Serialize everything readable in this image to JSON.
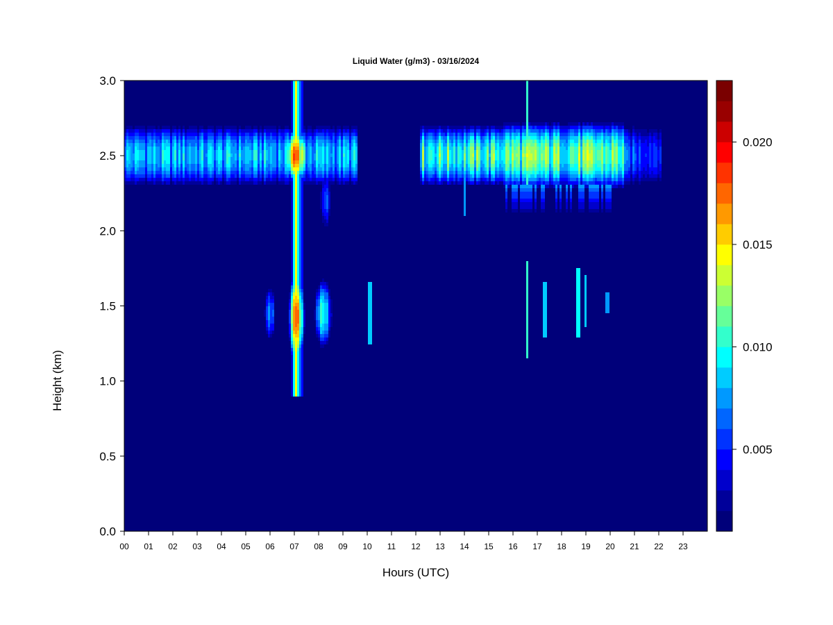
{
  "chart_data": {
    "type": "heatmap",
    "title": "Liquid Water (g/m3) - 03/16/2024",
    "xlabel": "Hours (UTC)",
    "ylabel": "Height (km)",
    "xlim": [
      0,
      24
    ],
    "ylim": [
      0,
      3.0
    ],
    "x_tick_values": [
      0,
      1,
      2,
      3,
      4,
      5,
      6,
      7,
      8,
      9,
      10,
      11,
      12,
      13,
      14,
      15,
      16,
      17,
      18,
      19,
      20,
      21,
      22,
      23
    ],
    "x_tick_labels": [
      "00",
      "01",
      "02",
      "03",
      "04",
      "05",
      "06",
      "07",
      "08",
      "09",
      "10",
      "11",
      "12",
      "13",
      "14",
      "15",
      "16",
      "17",
      "18",
      "19",
      "20",
      "21",
      "22",
      "23"
    ],
    "y_tick_values": [
      0.0,
      0.5,
      1.0,
      1.5,
      2.0,
      2.5,
      3.0
    ],
    "y_tick_labels": [
      "0.0",
      "0.5",
      "1.0",
      "1.5",
      "2.0",
      "2.5",
      "3.0"
    ],
    "colorbar": {
      "min": 0.001,
      "max": 0.023,
      "levels": 21,
      "tick_values": [
        0.005,
        0.01,
        0.015,
        0.02
      ],
      "tick_labels": [
        "0.005",
        "0.010",
        "0.015",
        "0.020"
      ],
      "colors": [
        "#00007a",
        "#00009a",
        "#0000cc",
        "#0000ff",
        "#0033ff",
        "#0066ff",
        "#0099ff",
        "#00ccff",
        "#00ffff",
        "#33ffcc",
        "#66ff99",
        "#99ff66",
        "#ccff33",
        "#ffff00",
        "#ffcc00",
        "#ff9900",
        "#ff6600",
        "#ff3300",
        "#ff0000",
        "#cc0000",
        "#990000",
        "#7a0000"
      ]
    },
    "background_value": 0.001,
    "features": [
      {
        "type": "cloud_layer",
        "x_range": [
          0.0,
          5.7
        ],
        "y_center": 2.5,
        "y_half_width": 0.22,
        "peak": 0.0105
      },
      {
        "type": "cloud_layer",
        "x_range": [
          5.7,
          9.6
        ],
        "y_center": 2.5,
        "y_half_width": 0.22,
        "peak": 0.0105
      },
      {
        "type": "cloud_layer",
        "x_range": [
          12.2,
          15.6
        ],
        "y_center": 2.5,
        "y_half_width": 0.22,
        "peak": 0.0135
      },
      {
        "type": "cloud_layer",
        "x_range": [
          15.6,
          20.6
        ],
        "y_center": 2.5,
        "y_half_width": 0.24,
        "peak": 0.0145
      },
      {
        "type": "cloud_layer",
        "x_range": [
          20.6,
          22.1
        ],
        "y_center": 2.5,
        "y_half_width": 0.22,
        "peak": 0.0075
      },
      {
        "type": "column",
        "x_center": 7.1,
        "x_half_width": 0.3,
        "y_range": [
          0.9,
          3.0
        ],
        "peak": 0.02
      },
      {
        "type": "blob",
        "x_center": 7.1,
        "y_center": 2.5,
        "x_half_width": 0.55,
        "y_half_width": 0.2,
        "peak": 0.021
      },
      {
        "type": "blob",
        "x_center": 7.1,
        "y_center": 1.42,
        "x_half_width": 0.35,
        "y_half_width": 0.35,
        "peak": 0.021
      },
      {
        "type": "blob",
        "x_center": 8.2,
        "y_center": 1.45,
        "x_half_width": 0.4,
        "y_half_width": 0.25,
        "peak": 0.0125
      },
      {
        "type": "blob",
        "x_center": 6.0,
        "y_center": 1.45,
        "x_half_width": 0.25,
        "y_half_width": 0.2,
        "peak": 0.0095
      },
      {
        "type": "blob",
        "x_center": 8.3,
        "y_center": 2.2,
        "x_half_width": 0.25,
        "y_half_width": 0.2,
        "peak": 0.008
      },
      {
        "type": "streak",
        "x_center": 10.1,
        "y_range": [
          1.25,
          1.65
        ],
        "peak": 0.008
      },
      {
        "type": "streak",
        "x_center": 14.0,
        "y_range": [
          2.1,
          2.6
        ],
        "peak": 0.007
      },
      {
        "type": "streak",
        "x_center": 16.6,
        "y_range": [
          1.15,
          1.8
        ],
        "peak": 0.011
      },
      {
        "type": "streak",
        "x_center": 16.6,
        "y_range": [
          2.3,
          3.0
        ],
        "peak": 0.01
      },
      {
        "type": "streak",
        "x_center": 17.3,
        "y_range": [
          1.3,
          1.65
        ],
        "peak": 0.008
      },
      {
        "type": "streak",
        "x_center": 18.7,
        "y_range": [
          1.3,
          1.75
        ],
        "peak": 0.009
      },
      {
        "type": "streak",
        "x_center": 19.0,
        "y_range": [
          1.35,
          1.7
        ],
        "peak": 0.008
      },
      {
        "type": "streak",
        "x_center": 19.9,
        "y_range": [
          1.45,
          1.6
        ],
        "peak": 0.007
      },
      {
        "type": "fringe",
        "x_range": [
          15.7,
          20.2
        ],
        "y_range": [
          2.05,
          2.3
        ],
        "peak": 0.0075
      }
    ],
    "grid": false,
    "legend": "colorbar-right"
  }
}
